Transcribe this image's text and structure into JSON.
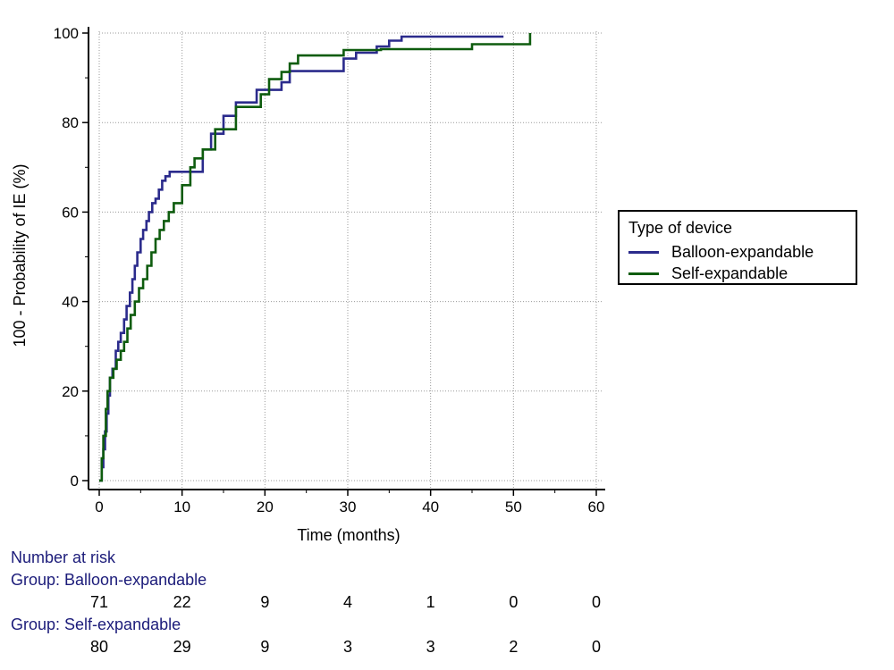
{
  "chart_data": {
    "type": "line",
    "xlabel": "Time (months)",
    "ylabel": "100 - Probability of IE (%)",
    "xlim": [
      0,
      60
    ],
    "ylim": [
      0,
      100
    ],
    "xticks": [
      0,
      10,
      20,
      30,
      40,
      50,
      60
    ],
    "yticks": [
      0,
      20,
      40,
      60,
      80,
      100
    ],
    "grid": true,
    "legend_position": "right",
    "legend_title": "Type of device",
    "series": [
      {
        "name": "Balloon-expandable",
        "color": "#2b2b8c",
        "step": true,
        "x": [
          0,
          0.3,
          0.5,
          0.7,
          0.9,
          1.1,
          1.3,
          1.6,
          2.0,
          2.3,
          2.6,
          3.0,
          3.3,
          3.7,
          4.0,
          4.3,
          4.6,
          5.0,
          5.3,
          5.7,
          6.0,
          6.4,
          6.8,
          7.2,
          7.6,
          8.0,
          8.5,
          9.0,
          12.5,
          13.5,
          15.0,
          16.5,
          19.0,
          22.0,
          23.0,
          29.5,
          31.0,
          33.5,
          35.0,
          36.5,
          48.8
        ],
        "y": [
          0,
          3,
          7,
          11,
          15,
          19,
          23,
          25,
          29,
          31,
          33,
          36,
          39,
          42,
          45,
          48,
          51,
          54,
          56,
          58,
          60,
          62,
          63,
          65,
          67,
          68,
          69,
          69,
          74,
          77.5,
          81.5,
          84.5,
          87.3,
          89,
          91.5,
          94.3,
          95.6,
          97,
          98.3,
          99.2,
          99.2
        ]
      },
      {
        "name": "Self-expandable",
        "color": "#0e5c0e",
        "step": true,
        "x": [
          0,
          0.3,
          0.5,
          0.8,
          1.0,
          1.3,
          1.7,
          2.1,
          2.6,
          3.0,
          3.4,
          3.8,
          4.3,
          4.8,
          5.3,
          5.8,
          6.3,
          6.8,
          7.3,
          7.8,
          8.4,
          9.0,
          10.0,
          11.0,
          11.5,
          12.5,
          14.0,
          16.5,
          19.5,
          20.5,
          22.0,
          23.0,
          24.0,
          29.5,
          34.0,
          45.0,
          52.0
        ],
        "y": [
          0,
          5,
          10,
          16,
          20,
          23,
          25,
          27,
          29,
          31,
          34,
          37,
          40,
          43,
          45,
          48,
          51,
          54,
          56,
          58,
          60,
          62,
          66,
          70,
          72,
          74,
          78.5,
          83.5,
          86.3,
          89.7,
          91.3,
          93.2,
          95,
          96.2,
          96.4,
          97.5,
          100
        ]
      }
    ],
    "risk_table": {
      "heading": "Number at risk",
      "times": [
        0,
        10,
        20,
        30,
        40,
        50,
        60
      ],
      "groups": [
        {
          "label": "Group: Balloon-expandable",
          "counts": [
            "71",
            "22",
            "9",
            "4",
            "1",
            "0",
            "0"
          ]
        },
        {
          "label": "Group: Self-expandable",
          "counts": [
            "80",
            "29",
            "9",
            "3",
            "3",
            "2",
            "0"
          ]
        }
      ]
    }
  }
}
